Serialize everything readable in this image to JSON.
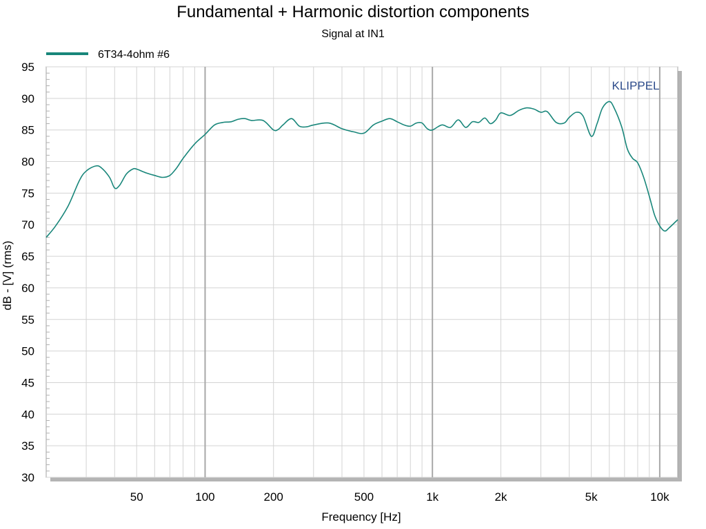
{
  "chart_data": {
    "type": "line",
    "title": "Fundamental + Harmonic distortion components",
    "subtitle": "Signal at IN1",
    "xlabel": "Frequency [Hz]",
    "ylabel": "dB - [V]  (rms)",
    "x_scale": "log",
    "xlim": [
      20,
      12000
    ],
    "ylim": [
      30,
      95
    ],
    "x_ticks": [
      {
        "value": 50,
        "label": "50"
      },
      {
        "value": 100,
        "label": "100"
      },
      {
        "value": 200,
        "label": "200"
      },
      {
        "value": 500,
        "label": "500"
      },
      {
        "value": 1000,
        "label": "1k"
      },
      {
        "value": 2000,
        "label": "2k"
      },
      {
        "value": 5000,
        "label": "5k"
      },
      {
        "value": 10000,
        "label": "10k"
      }
    ],
    "y_ticks": [
      30,
      35,
      40,
      45,
      50,
      55,
      60,
      65,
      70,
      75,
      80,
      85,
      90,
      95
    ],
    "grid": true,
    "legend": {
      "position": "top-left"
    },
    "watermark": "KLIPPEL",
    "colors": {
      "series": "#18867a",
      "watermark": "#2b4a8a",
      "grid": "#d3d3d3",
      "grid_major": "#a8a8a8",
      "shadow": "#b4b4b4"
    },
    "series": [
      {
        "name": "6T34-4ohm #6",
        "color": "#18867a",
        "x": [
          20,
          22,
          25,
          28,
          30,
          33,
          35,
          38,
          40,
          42,
          45,
          48,
          50,
          55,
          60,
          65,
          70,
          75,
          80,
          90,
          100,
          110,
          120,
          130,
          140,
          150,
          160,
          180,
          200,
          210,
          220,
          240,
          260,
          280,
          300,
          350,
          400,
          450,
          500,
          550,
          600,
          650,
          700,
          750,
          800,
          850,
          900,
          950,
          1000,
          1100,
          1200,
          1300,
          1400,
          1500,
          1600,
          1700,
          1800,
          1900,
          2000,
          2200,
          2400,
          2600,
          2800,
          3000,
          3200,
          3500,
          3800,
          4000,
          4300,
          4600,
          5000,
          5300,
          5600,
          6000,
          6300,
          6800,
          7200,
          7600,
          8000,
          8500,
          9000,
          9500,
          10000,
          10500,
          11000,
          12000
        ],
        "y": [
          68,
          69.8,
          73,
          77,
          78.5,
          79.3,
          79,
          77.5,
          75.8,
          76.2,
          78,
          78.8,
          78.8,
          78.2,
          77.8,
          77.5,
          77.8,
          79,
          80.5,
          82.8,
          84.3,
          85.8,
          86.2,
          86.3,
          86.7,
          86.8,
          86.5,
          86.5,
          85,
          85.1,
          85.8,
          86.8,
          85.6,
          85.5,
          85.8,
          86.1,
          85.2,
          84.7,
          84.5,
          85.8,
          86.4,
          86.8,
          86.3,
          85.8,
          85.6,
          86.1,
          86.1,
          85.2,
          85,
          85.8,
          85.4,
          86.6,
          85.4,
          86.3,
          86.2,
          86.9,
          86,
          86.6,
          87.7,
          87.3,
          88.1,
          88.5,
          88.3,
          87.8,
          87.9,
          86.2,
          86.1,
          87,
          87.8,
          87.2,
          84,
          86,
          88.5,
          89.5,
          88.5,
          85.5,
          82,
          80.5,
          79.8,
          77.5,
          74.5,
          71.5,
          69.8,
          69,
          69.5,
          70.8
        ]
      }
    ]
  }
}
